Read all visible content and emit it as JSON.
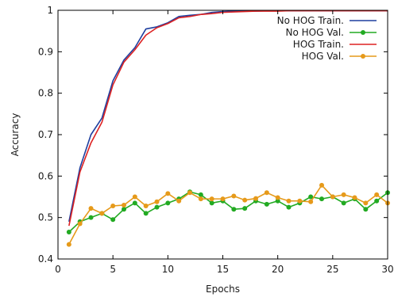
{
  "chart_data": {
    "type": "line",
    "title": "",
    "xlabel": "Epochs",
    "ylabel": "Accuracy",
    "xlim": [
      0,
      30
    ],
    "ylim": [
      0.4,
      1.0
    ],
    "xticks": [
      0,
      5,
      10,
      15,
      20,
      25,
      30
    ],
    "yticks": [
      0.4,
      0.5,
      0.6,
      0.7,
      0.8,
      0.9,
      1.0
    ],
    "xtick_labels": [
      "0",
      "5",
      "10",
      "15",
      "20",
      "25",
      "30"
    ],
    "ytick_labels": [
      "0.4",
      "0.5",
      "0.6",
      "0.7",
      "0.8",
      "0.9",
      "1"
    ],
    "grid": false,
    "legend_position": "top-right",
    "x": [
      1,
      2,
      3,
      4,
      5,
      6,
      7,
      8,
      9,
      10,
      11,
      12,
      13,
      14,
      15,
      16,
      17,
      18,
      19,
      20,
      21,
      22,
      23,
      24,
      25,
      26,
      27,
      28,
      29,
      30
    ],
    "series": [
      {
        "name": "No HOG Train.",
        "color": "#1f3f9f",
        "marker": "none",
        "values": [
          0.49,
          0.62,
          0.7,
          0.74,
          0.83,
          0.88,
          0.91,
          0.955,
          0.96,
          0.97,
          0.985,
          0.988,
          0.99,
          0.995,
          0.997,
          0.998,
          0.998,
          0.998,
          0.999,
          0.999,
          0.999,
          0.999,
          0.999,
          0.999,
          0.999,
          0.999,
          0.999,
          0.999,
          0.999,
          0.999
        ]
      },
      {
        "name": "No HOG Val.",
        "color": "#22aa22",
        "marker": "circle",
        "values": [
          0.465,
          0.49,
          0.5,
          0.51,
          0.495,
          0.52,
          0.535,
          0.51,
          0.525,
          0.535,
          0.545,
          0.562,
          0.555,
          0.535,
          0.54,
          0.52,
          0.522,
          0.54,
          0.532,
          0.54,
          0.525,
          0.535,
          0.55,
          0.545,
          0.55,
          0.535,
          0.545,
          0.52,
          0.54,
          0.56
        ]
      },
      {
        "name": "HOG Train.",
        "color": "#dd2222",
        "marker": "none",
        "values": [
          0.48,
          0.61,
          0.68,
          0.73,
          0.82,
          0.875,
          0.905,
          0.94,
          0.958,
          0.968,
          0.982,
          0.985,
          0.99,
          0.992,
          0.995,
          0.996,
          0.997,
          0.998,
          0.998,
          0.998,
          0.999,
          0.999,
          0.999,
          0.999,
          0.999,
          0.999,
          0.999,
          0.999,
          0.999,
          0.999
        ]
      },
      {
        "name": "HOG Val.",
        "color": "#e69a1a",
        "marker": "circle",
        "values": [
          0.435,
          0.485,
          0.522,
          0.51,
          0.528,
          0.53,
          0.55,
          0.528,
          0.538,
          0.558,
          0.54,
          0.56,
          0.545,
          0.545,
          0.545,
          0.552,
          0.542,
          0.546,
          0.56,
          0.548,
          0.54,
          0.54,
          0.538,
          0.578,
          0.55,
          0.555,
          0.548,
          0.535,
          0.555,
          0.535
        ]
      }
    ]
  }
}
